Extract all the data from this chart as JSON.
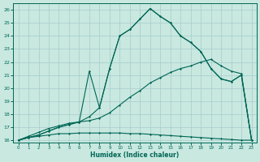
{
  "xlabel": "Humidex (Indice chaleur)",
  "bg_color": "#c8e8e0",
  "grid_color": "#a8cccc",
  "line_color": "#006655",
  "xlim_min": -0.5,
  "xlim_max": 23.5,
  "ylim_min": 15.8,
  "ylim_max": 26.5,
  "x_ticks": [
    0,
    1,
    2,
    3,
    4,
    5,
    6,
    7,
    8,
    9,
    10,
    11,
    12,
    13,
    14,
    15,
    16,
    17,
    18,
    19,
    20,
    21,
    22,
    23
  ],
  "y_ticks": [
    16,
    17,
    18,
    19,
    20,
    21,
    22,
    23,
    24,
    25,
    26
  ],
  "s1_x": [
    0,
    1,
    2,
    3,
    4,
    5,
    6,
    7,
    8,
    9,
    10,
    11,
    12,
    13,
    14,
    15,
    16,
    17,
    18,
    19,
    20,
    21,
    22,
    23
  ],
  "s1_y": [
    16.0,
    16.2,
    16.3,
    16.4,
    16.5,
    16.5,
    16.55,
    16.55,
    16.55,
    16.55,
    16.55,
    16.5,
    16.5,
    16.45,
    16.4,
    16.35,
    16.3,
    16.25,
    16.2,
    16.15,
    16.1,
    16.05,
    16.0,
    16.0
  ],
  "s2_x": [
    0,
    1,
    2,
    3,
    4,
    5,
    6,
    7,
    8,
    9,
    10,
    11,
    12,
    13,
    14,
    15,
    16,
    17,
    18,
    19,
    20,
    21,
    22,
    23
  ],
  "s2_y": [
    16.0,
    16.3,
    16.6,
    16.9,
    17.1,
    17.3,
    17.4,
    17.5,
    17.7,
    18.1,
    18.7,
    19.3,
    19.8,
    20.4,
    20.8,
    21.2,
    21.5,
    21.7,
    22.0,
    22.2,
    21.7,
    21.3,
    21.1,
    16.0
  ],
  "s3_x": [
    0,
    1,
    2,
    3,
    4,
    5,
    6,
    7,
    8,
    9,
    10,
    11,
    12,
    13,
    14,
    15,
    16,
    17,
    18,
    19,
    20,
    21,
    22,
    23
  ],
  "s3_y": [
    16.0,
    16.2,
    16.4,
    16.7,
    17.0,
    17.2,
    17.4,
    17.8,
    18.5,
    21.5,
    24.0,
    24.5,
    25.3,
    26.1,
    25.5,
    25.0,
    24.0,
    23.5,
    22.8,
    21.5,
    20.7,
    20.5,
    21.0,
    16.0
  ],
  "s4_x": [
    0,
    1,
    2,
    3,
    4,
    5,
    6,
    7,
    8,
    9,
    10,
    11,
    12,
    13,
    14,
    15,
    16,
    17,
    18,
    19,
    20,
    21,
    22,
    23
  ],
  "s4_y": [
    16.0,
    16.2,
    16.4,
    16.7,
    17.0,
    17.2,
    17.4,
    21.3,
    18.5,
    21.5,
    24.0,
    24.5,
    25.3,
    26.1,
    25.5,
    25.0,
    24.0,
    23.5,
    22.8,
    21.5,
    20.7,
    20.5,
    21.0,
    16.0
  ]
}
